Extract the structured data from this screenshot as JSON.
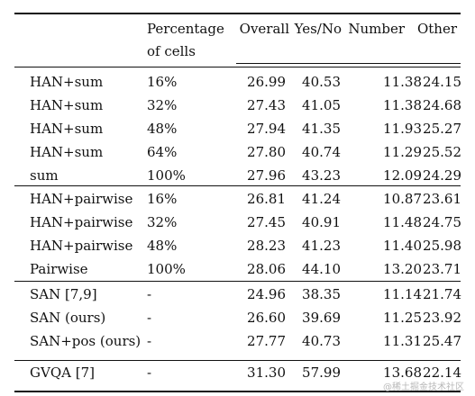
{
  "table": {
    "headers": {
      "pct_line1": "Percentage",
      "pct_line2": "of cells",
      "overall": "Overall",
      "yesno": "Yes/No",
      "number": "Number",
      "other": "Other"
    },
    "groups": [
      {
        "rows": [
          {
            "method": "HAN+sum",
            "pct": "16%",
            "overall": "26.99",
            "yesno": "40.53",
            "number": "11.38",
            "other": "24.15"
          },
          {
            "method": "HAN+sum",
            "pct": "32%",
            "overall": "27.43",
            "yesno": "41.05",
            "number": "11.38",
            "other": "24.68"
          },
          {
            "method": "HAN+sum",
            "pct": "48%",
            "overall": "27.94",
            "yesno": "41.35",
            "number": "11.93",
            "other": "25.27"
          },
          {
            "method": "HAN+sum",
            "pct": "64%",
            "overall": "27.80",
            "yesno": "40.74",
            "number": "11.29",
            "other": "25.52"
          },
          {
            "method": "sum",
            "pct": "100%",
            "overall": "27.96",
            "yesno": "43.23",
            "number": "12.09",
            "other": "24.29"
          }
        ]
      },
      {
        "rows": [
          {
            "method": "HAN+pairwise",
            "pct": "16%",
            "overall": "26.81",
            "yesno": "41.24",
            "number": "10.87",
            "other": "23.61"
          },
          {
            "method": "HAN+pairwise",
            "pct": "32%",
            "overall": "27.45",
            "yesno": "40.91",
            "number": "11.48",
            "other": "24.75"
          },
          {
            "method": "HAN+pairwise",
            "pct": "48%",
            "overall": "28.23",
            "yesno": "41.23",
            "number": "11.40",
            "other": "25.98"
          },
          {
            "method": "Pairwise",
            "pct": "100%",
            "overall": "28.06",
            "yesno": "44.10",
            "number": "13.20",
            "other": "23.71"
          }
        ]
      },
      {
        "rows": [
          {
            "method": "SAN [7,9]",
            "pct": "-",
            "overall": "24.96",
            "yesno": "38.35",
            "number": "11.14",
            "other": "21.74"
          },
          {
            "method": "SAN (ours)",
            "pct": "-",
            "overall": "26.60",
            "yesno": "39.69",
            "number": "11.25",
            "other": "23.92"
          },
          {
            "method": "SAN+pos (ours)",
            "pct": "-",
            "overall": "27.77",
            "yesno": "40.73",
            "number": "11.31",
            "other": "25.47"
          }
        ]
      },
      {
        "rows": [
          {
            "method": "GVQA [7]",
            "pct": "-",
            "overall": "31.30",
            "yesno": "57.99",
            "number": "13.68",
            "other": "22.14"
          }
        ]
      }
    ]
  },
  "watermark": "@稀土掘金技术社区"
}
